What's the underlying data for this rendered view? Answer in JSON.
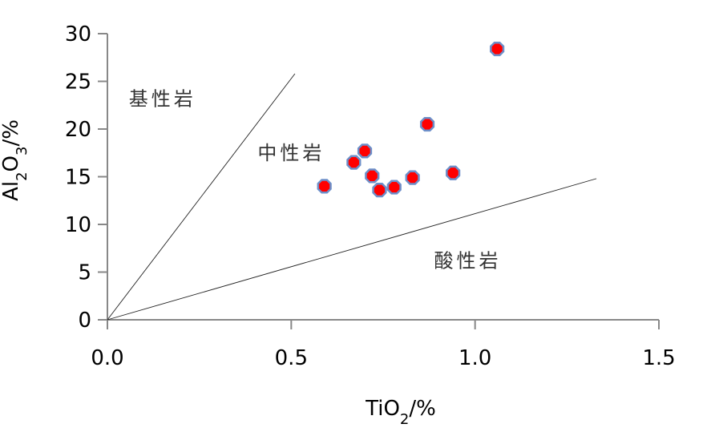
{
  "chart_data": {
    "type": "scatter",
    "xlabel": {
      "base": "TiO",
      "sub": "2",
      "suffix": "/%"
    },
    "ylabel": {
      "base1": "Al",
      "sub1": "2",
      "base2": "O",
      "sub2": "3",
      "suffix": "/%"
    },
    "xlim": [
      0,
      1.5
    ],
    "ylim": [
      0,
      30
    ],
    "x_ticks": [
      "0.0",
      "0.5",
      "1.0",
      "1.5"
    ],
    "y_ticks": [
      "0",
      "5",
      "10",
      "15",
      "20",
      "25",
      "30"
    ],
    "points": [
      {
        "x": 0.59,
        "y": 14.0
      },
      {
        "x": 0.67,
        "y": 16.5
      },
      {
        "x": 0.7,
        "y": 17.7
      },
      {
        "x": 0.72,
        "y": 15.1
      },
      {
        "x": 0.74,
        "y": 13.6
      },
      {
        "x": 0.78,
        "y": 13.9
      },
      {
        "x": 0.83,
        "y": 14.9
      },
      {
        "x": 0.87,
        "y": 20.5
      },
      {
        "x": 0.94,
        "y": 15.4
      },
      {
        "x": 1.06,
        "y": 28.4
      }
    ],
    "boundary_lines": [
      {
        "x": [
          0,
          0.51
        ],
        "y": [
          0,
          25.8
        ]
      },
      {
        "x": [
          0,
          1.33
        ],
        "y": [
          0,
          14.8
        ]
      }
    ],
    "regions": [
      {
        "label": "基性岩",
        "x": 0.15,
        "y": 22.5
      },
      {
        "label": "中性岩",
        "x": 0.5,
        "y": 16.8
      },
      {
        "label": "酸性岩",
        "x": 0.98,
        "y": 5.5
      }
    ],
    "grid": false,
    "marker": {
      "fill": "#ff0000",
      "stroke": "#6d8fc9",
      "shape": "octagon"
    }
  }
}
